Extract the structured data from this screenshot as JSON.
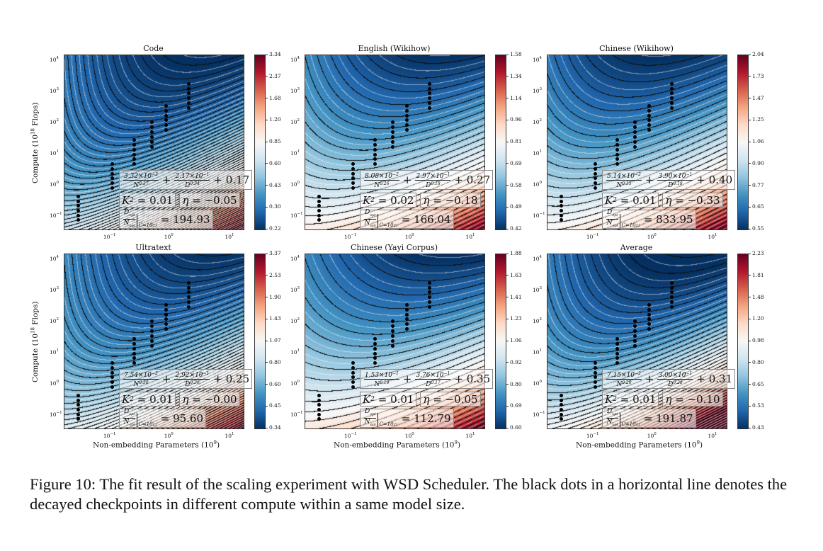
{
  "figure": {
    "caption": "Figure 10: The fit result of the scaling experiment with WSD Scheduler. The black dots in a horizontal line denotes the decayed checkpoints in different compute within a same model size.",
    "ylabel": {
      "text": "Compute (10",
      "exp": "18",
      "tail": " Flops)"
    },
    "xlabel": {
      "text": "Non-embedding Parameters (10",
      "exp": "9",
      "tail": ")"
    }
  },
  "chart_data": {
    "type": "heatmap",
    "colormap": "RdBu_r",
    "x_scale": "log",
    "y_scale": "log",
    "xlim": [
      0.018,
      16
    ],
    "ylim": [
      0.035,
      14000
    ],
    "x_ticks": [
      {
        "base": "10",
        "exp": "−1",
        "v": 0.1
      },
      {
        "base": "10",
        "exp": "0",
        "v": 1
      },
      {
        "base": "10",
        "exp": "1",
        "v": 10
      }
    ],
    "y_ticks": [
      {
        "base": "10",
        "exp": "4",
        "v": 10000
      },
      {
        "base": "10",
        "exp": "3",
        "v": 1000
      },
      {
        "base": "10",
        "exp": "2",
        "v": 100
      },
      {
        "base": "10",
        "exp": "1",
        "v": 10
      },
      {
        "base": "10",
        "exp": "0",
        "v": 1
      },
      {
        "base": "10",
        "exp": "−1",
        "v": 0.1
      }
    ],
    "checkpoints": [
      {
        "N": 0.03,
        "C": [
          0.07,
          0.4
        ]
      },
      {
        "N": 0.11,
        "C": [
          0.75,
          4.5
        ]
      },
      {
        "N": 0.25,
        "C": [
          4.5,
          26
        ]
      },
      {
        "N": 0.5,
        "C": [
          16,
          100
        ]
      },
      {
        "N": 0.85,
        "C": [
          55,
          330
        ]
      },
      {
        "N": 2.0,
        "C": [
          280,
          1700
        ]
      }
    ],
    "panels": [
      {
        "title": "Code",
        "A": "3.32×10",
        "A_exp": "−2",
        "a": "0.37",
        "B": "2.17×10",
        "B_exp": "−1",
        "b": "0.34",
        "E": "+ 0.17",
        "K2": "0.01",
        "eta": "−0.05",
        "ratio": "194.93",
        "colorbar": [
          "3.34",
          "2.37",
          "1.68",
          "1.20",
          "0.85",
          "0.60",
          "0.43",
          "0.30",
          "0.22"
        ]
      },
      {
        "title": "English (Wikihow)",
        "A": "8.08×10",
        "A_exp": "−2",
        "a": "0.26",
        "B": "2.97×10",
        "B_exp": "−1",
        "b": "0.18",
        "E": "+ 0.27",
        "K2": "0.02",
        "eta": "−0.18",
        "ratio": "166.04",
        "colorbar": [
          "1.58",
          "1.34",
          "1.14",
          "0.96",
          "0.81",
          "0.69",
          "0.58",
          "0.49",
          "0.42"
        ]
      },
      {
        "title": "Chinese (Wikihow)",
        "A": "5.14×10",
        "A_exp": "−2",
        "a": "0.35",
        "B": "3.90×10",
        "B_exp": "−1",
        "b": "0.18",
        "E": "+ 0.40",
        "K2": "0.01",
        "eta": "−0.33",
        "ratio": "833.95",
        "colorbar": [
          "2.04",
          "1.73",
          "1.47",
          "1.25",
          "1.06",
          "0.90",
          "0.77",
          "0.65",
          "0.55"
        ]
      },
      {
        "title": "Ultratext",
        "A": "7.54×10",
        "A_exp": "−2",
        "a": "0.30",
        "B": "2.92×10",
        "B_exp": "−1",
        "b": "0.30",
        "E": "+ 0.25",
        "K2": "0.01",
        "eta": "−0.00",
        "ratio": "95.60",
        "colorbar": [
          "3.37",
          "2.53",
          "1.90",
          "1.43",
          "1.07",
          "0.80",
          "0.60",
          "0.45",
          "0.34"
        ]
      },
      {
        "title": "Chinese (Yayi Corpus)",
        "A": "1.53×10",
        "A_exp": "−1",
        "a": "0.19",
        "B": "3.76×10",
        "B_exp": "−1",
        "b": "0.17",
        "E": "+ 0.35",
        "K2": "0.01",
        "eta": "−0.05",
        "ratio": "112.79",
        "colorbar": [
          "1.88",
          "1.63",
          "1.41",
          "1.23",
          "1.06",
          "0.92",
          "0.80",
          "0.69",
          "0.60"
        ]
      },
      {
        "title": "Average",
        "A": "7.15×10",
        "A_exp": "−2",
        "a": "0.29",
        "B": "3.00×10",
        "B_exp": "−1",
        "b": "0.28",
        "E": "+ 0.31",
        "K2": "0.01",
        "eta": "−0.10",
        "ratio": "191.87",
        "colorbar": [
          "2.23",
          "1.81",
          "1.48",
          "1.20",
          "0.98",
          "0.80",
          "0.65",
          "0.53",
          "0.43"
        ]
      }
    ],
    "labels": {
      "K2": "K",
      "K2_exp": "2",
      "eq": " = ",
      "eta": "η",
      "D_opt": "D",
      "D_sub": "opt",
      "N_opt": "N",
      "N_sub": "opt",
      "N_var": "N",
      "D_var": "D",
      "at": "C=10",
      "at_exp": "21",
      "plus": "+"
    }
  }
}
